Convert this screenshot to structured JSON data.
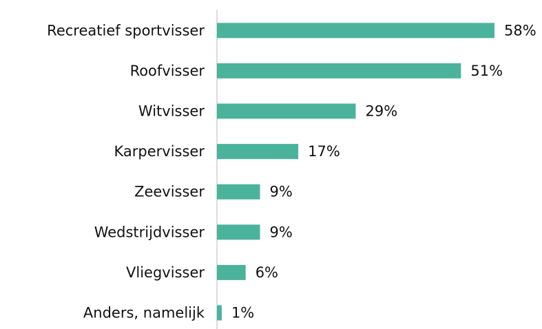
{
  "chart_data": {
    "type": "bar",
    "orientation": "horizontal",
    "categories": [
      "Recreatief sportvisser",
      "Roofvisser",
      "Witvisser",
      "Karpervisser",
      "Zeevisser",
      "Wedstrijdvisser",
      "Vliegvisser",
      "Anders, namelijk"
    ],
    "values": [
      58,
      51,
      29,
      17,
      9,
      9,
      6,
      1
    ],
    "value_labels": [
      "58%",
      "51%",
      "29%",
      "17%",
      "9%",
      "9%",
      "6%",
      "1%"
    ],
    "color": "#4bb39c"
  }
}
